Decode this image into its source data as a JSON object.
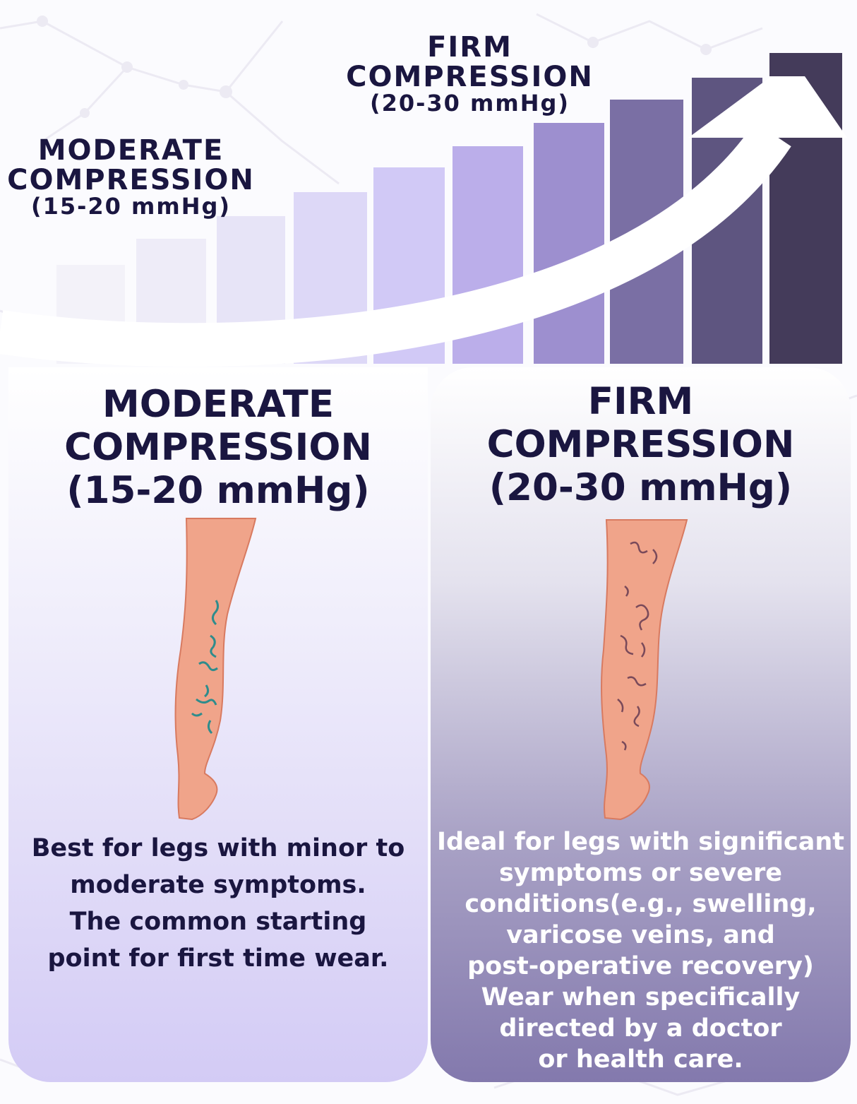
{
  "top": {
    "moderate": {
      "line1": "MODERATE",
      "line2": "COMPRESSION",
      "range": "(15-20 mmHg)"
    },
    "firm": {
      "line1": "FIRM",
      "line2": "COMPRESSION",
      "range": "(20-30 mmHg)"
    }
  },
  "bar_colors": [
    "#f3f2f9",
    "#eeecf8",
    "#e7e4f7",
    "#ddd8f7",
    "#d1c9f6",
    "#bbaeea",
    "#9d8fcf",
    "#7a6fa4",
    "#5e5580",
    "#443b5a"
  ],
  "panels": {
    "left": {
      "title": [
        "MODERATE",
        "COMPRESSION",
        "(15-20 mmHg)"
      ],
      "description": [
        "Best for legs with minor to",
        "moderate symptoms.",
        "The common starting",
        "point for first time wear."
      ]
    },
    "right": {
      "title": [
        "FIRM",
        "COMPRESSION",
        "(20-30 mmHg)"
      ],
      "description": [
        "Ideal for legs with significant",
        "symptoms or severe",
        "conditions(e.g., swelling,",
        "varicose veins, and",
        "post-operative recovery)",
        "Wear when specifically",
        "directed by a doctor",
        "or health care."
      ]
    }
  },
  "colors": {
    "text_dark": "#1a1640",
    "skin": "#f0a48a",
    "vein_mild": "#2f8c8c",
    "vein_severe": "#7a4a5a"
  }
}
